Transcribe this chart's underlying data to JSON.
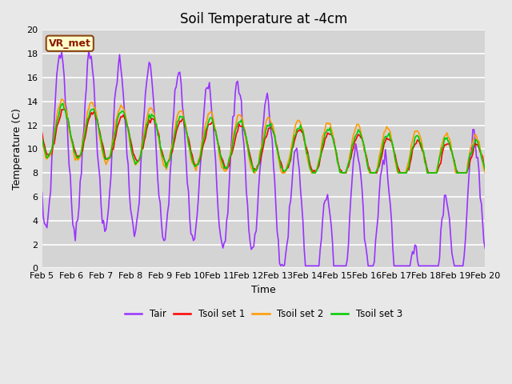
{
  "title": "Soil Temperature at -4cm",
  "xlabel": "Time",
  "ylabel": "Temperature (C)",
  "ylim": [
    0,
    20
  ],
  "xlim": [
    0,
    360
  ],
  "x_tick_labels": [
    "Feb 5",
    "Feb 6",
    "Feb 7",
    "Feb 8",
    "Feb 9",
    "Feb 10",
    "Feb 11",
    "Feb 12",
    "Feb 13",
    "Feb 14",
    "Feb 15",
    "Feb 16",
    "Feb 17",
    "Feb 18",
    "Feb 19",
    "Feb 20"
  ],
  "x_tick_positions": [
    0,
    24,
    48,
    72,
    96,
    120,
    144,
    168,
    192,
    216,
    240,
    264,
    288,
    312,
    336,
    360
  ],
  "annotation_text": "VR_met",
  "annotation_bg": "#ffffcc",
  "annotation_border": "#8B4513",
  "line_colors": {
    "Tair": "#9933ff",
    "Tsoil1": "#ff0000",
    "Tsoil2": "#ff9900",
    "Tsoil3": "#00cc00"
  },
  "legend_labels": [
    "Tair",
    "Tsoil set 1",
    "Tsoil set 2",
    "Tsoil set 3"
  ],
  "fig_bg_color": "#e8e8e8",
  "plot_bg_color": "#d4d4d4",
  "title_fontsize": 12,
  "axis_fontsize": 9,
  "tick_fontsize": 8
}
